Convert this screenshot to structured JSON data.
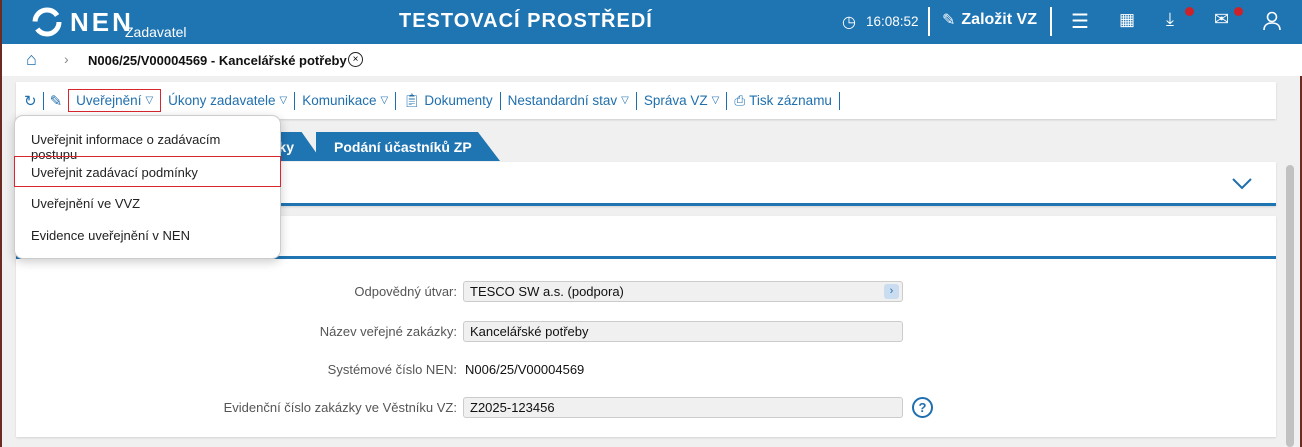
{
  "header": {
    "logo": "NEN",
    "subtitle": "Zadavatel",
    "env_title": "TESTOVACÍ PROSTŘEDÍ",
    "time": "16:08:52",
    "create_label": "Založit VZ",
    "accent": "#1f74b2"
  },
  "breadcrumb": {
    "title": "N006/25/V00004569 - Kancelářské potřeby"
  },
  "toolbar": {
    "items": [
      "Uveřejnění",
      "Úkony zadavatele",
      "Komunikace",
      "Dokumenty",
      "Nestandardní stav",
      "Správa VZ",
      "Tisk záznamu"
    ]
  },
  "dropdown": {
    "items": [
      "Uveřejnit informace o zadávacím postupu",
      "Uveřejnit zadávací podmínky",
      "Uveřejnění ve VVZ",
      "Evidence uveřejnění v NEN"
    ],
    "highlighted": 1
  },
  "tabs": [
    "ky",
    "Podání účastníků ZP"
  ],
  "form": {
    "responsible_label": "Odpovědný útvar:",
    "responsible_value": "TESCO SW a.s. (podpora)",
    "name_label": "Název veřejné zakázky:",
    "name_value": "Kancelářské potřeby",
    "sysnum_label": "Systémové číslo NEN:",
    "sysnum_value": "N006/25/V00004569",
    "evnum_label": "Evidenční číslo zakázky ve Věstníku VZ:",
    "evnum_value": "Z2025-123456"
  }
}
